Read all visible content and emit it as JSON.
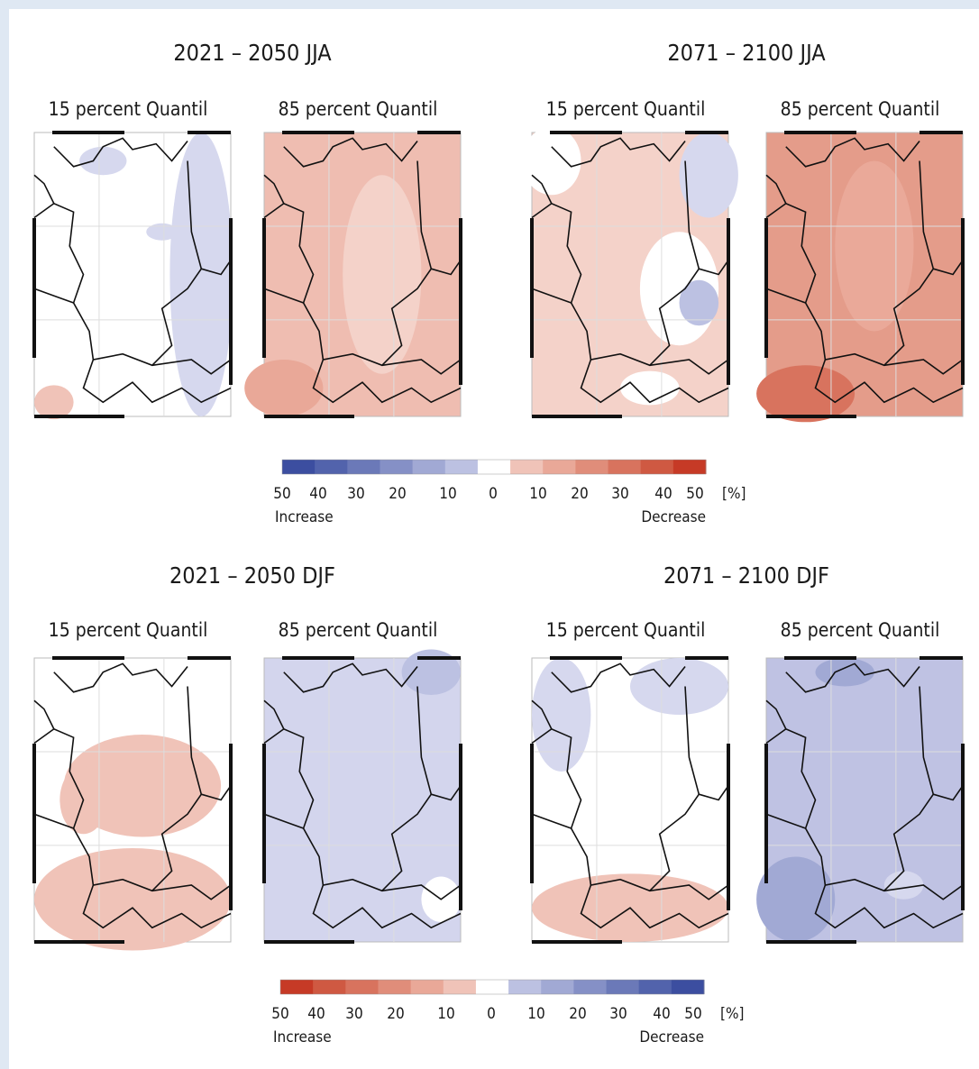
{
  "panels": [
    {
      "title": "2021 – 2050 JJA",
      "maps": [
        "15 percent Quantil",
        "85 percent Quantil"
      ]
    },
    {
      "title": "2071 – 2100 JJA",
      "maps": [
        "15 percent Quantil",
        "85 percent Quantil"
      ]
    },
    {
      "title": "2021 – 2050 DJF",
      "maps": [
        "15 percent Quantil",
        "85 percent Quantil"
      ]
    },
    {
      "title": "2071 – 2100 DJF",
      "maps": [
        "15 percent Quantil",
        "85 percent Quantil"
      ]
    }
  ],
  "colorbars": [
    {
      "colors": [
        "#3c4ea0",
        "#5263ac",
        "#6b79b8",
        "#8590c6",
        "#a1a9d4",
        "#bcc1e2",
        "#ffffff",
        "#f0c3b8",
        "#e9a898",
        "#e08d7a",
        "#d8735e",
        "#cf5942",
        "#c63a26"
      ],
      "ticks": [
        50,
        40,
        30,
        20,
        10,
        0,
        10,
        20,
        30,
        40,
        50
      ],
      "unit": "[%]",
      "left_label": "Increase",
      "right_label": "Decrease"
    },
    {
      "colors": [
        "#c63a26",
        "#cf5942",
        "#d8735e",
        "#e08d7a",
        "#e9a898",
        "#f0c3b8",
        "#ffffff",
        "#bcc1e2",
        "#a1a9d4",
        "#8590c6",
        "#6b79b8",
        "#5263ac",
        "#3c4ea0"
      ],
      "ticks": [
        50,
        40,
        30,
        20,
        10,
        0,
        10,
        20,
        30,
        40,
        50
      ],
      "unit": "[%]",
      "left_label": "Increase",
      "right_label": "Decrease"
    }
  ]
}
